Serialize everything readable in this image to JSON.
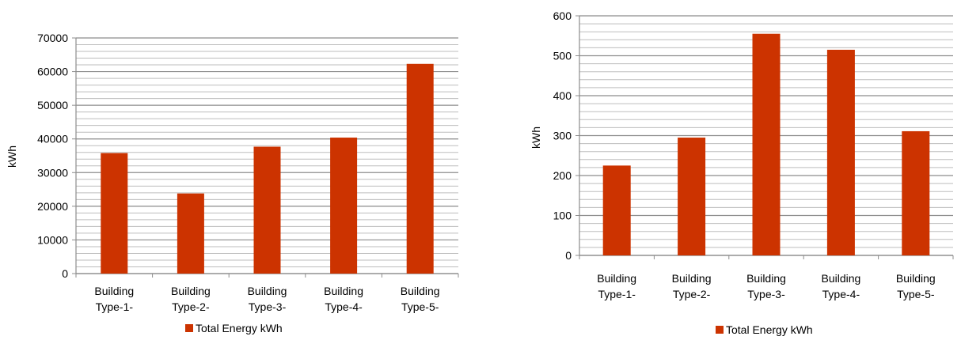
{
  "chart_data": [
    {
      "type": "bar",
      "categories": [
        [
          "Building",
          "Type-1-"
        ],
        [
          "Building",
          "Type-2-"
        ],
        [
          "Building",
          "Type-3-"
        ],
        [
          "Building",
          "Type-4-"
        ],
        [
          "Building",
          "Type-5-"
        ]
      ],
      "series": [
        {
          "name": "Total Energy kWh",
          "values": [
            35800,
            23800,
            37700,
            40400,
            62300
          ],
          "color": "#CC3300"
        }
      ],
      "title": "",
      "xlabel": "",
      "ylabel": "kWh",
      "ylim": [
        0,
        70000
      ],
      "yticks": [
        0,
        10000,
        20000,
        30000,
        40000,
        50000,
        60000,
        70000
      ],
      "minor_gridlines_per_major": 5,
      "grid": true,
      "legend_position": "bottom"
    },
    {
      "type": "bar",
      "categories": [
        [
          "Building",
          "Type-1-"
        ],
        [
          "Building",
          "Type-2-"
        ],
        [
          "Building",
          "Type-3-"
        ],
        [
          "Building",
          "Type-4-"
        ],
        [
          "Building",
          "Type-5-"
        ]
      ],
      "series": [
        {
          "name": "Total Energy kWh",
          "values": [
            225,
            295,
            555,
            515,
            311
          ],
          "color": "#CC3300"
        }
      ],
      "title": "",
      "xlabel": "",
      "ylabel": "kWh",
      "ylim": [
        0,
        600
      ],
      "yticks": [
        0,
        100,
        200,
        300,
        400,
        500,
        600
      ],
      "minor_gridlines_per_major": 5,
      "grid": true,
      "legend_position": "bottom"
    }
  ]
}
